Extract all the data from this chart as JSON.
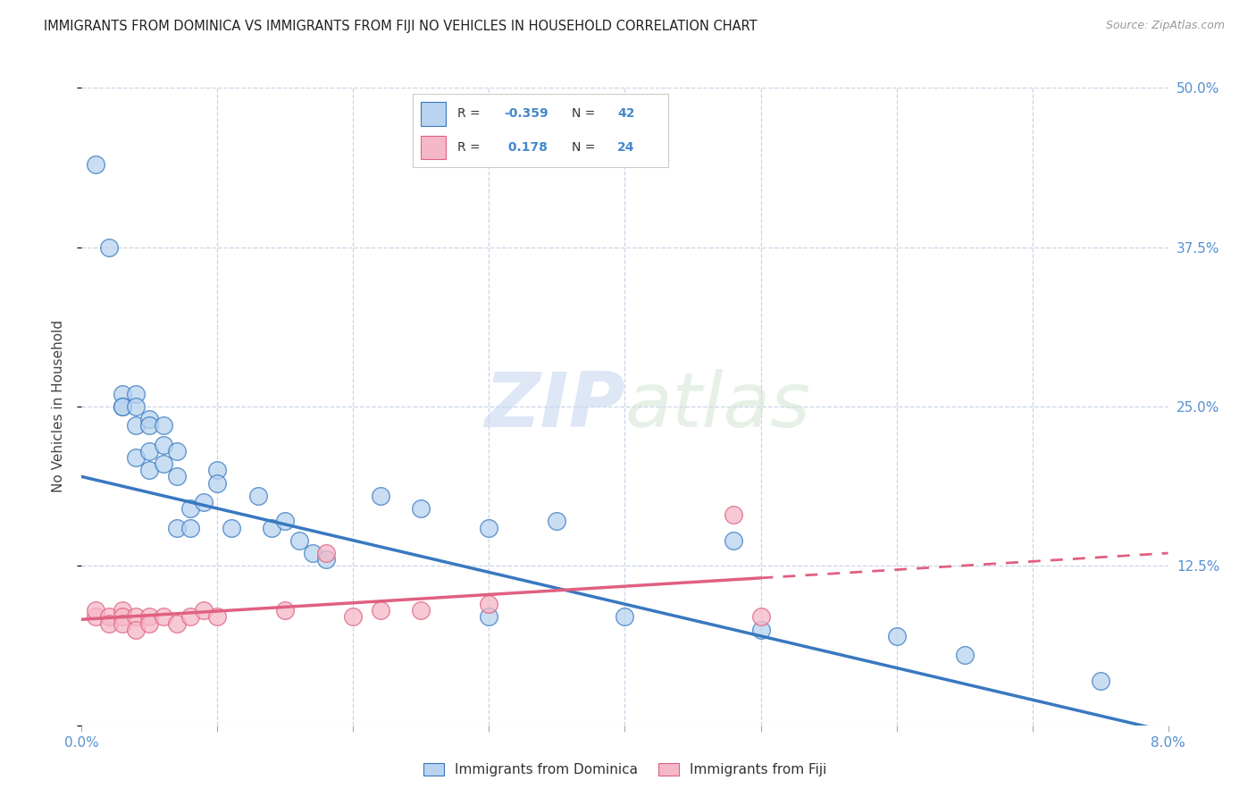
{
  "title": "IMMIGRANTS FROM DOMINICA VS IMMIGRANTS FROM FIJI NO VEHICLES IN HOUSEHOLD CORRELATION CHART",
  "source": "Source: ZipAtlas.com",
  "ylabel": "No Vehicles in Household",
  "legend_label_blue": "Immigrants from Dominica",
  "legend_label_pink": "Immigrants from Fiji",
  "watermark_zip": "ZIP",
  "watermark_atlas": "atlas",
  "blue_color": "#b8d4f0",
  "pink_color": "#f5b8c8",
  "blue_line_color": "#3878c0",
  "pink_line_color": "#e06080",
  "legend_r_blue": "-0.359",
  "legend_n_blue": "42",
  "legend_r_pink": "0.178",
  "legend_n_pink": "24",
  "dominica_x": [
    0.001,
    0.002,
    0.003,
    0.003,
    0.003,
    0.004,
    0.004,
    0.004,
    0.004,
    0.005,
    0.005,
    0.005,
    0.005,
    0.006,
    0.006,
    0.006,
    0.007,
    0.007,
    0.007,
    0.008,
    0.008,
    0.009,
    0.01,
    0.01,
    0.011,
    0.013,
    0.014,
    0.015,
    0.016,
    0.017,
    0.018,
    0.022,
    0.025,
    0.03,
    0.03,
    0.035,
    0.04,
    0.048,
    0.05,
    0.06,
    0.065,
    0.075
  ],
  "dominica_y": [
    0.44,
    0.375,
    0.26,
    0.25,
    0.25,
    0.26,
    0.25,
    0.235,
    0.21,
    0.24,
    0.235,
    0.215,
    0.2,
    0.235,
    0.22,
    0.205,
    0.215,
    0.195,
    0.155,
    0.17,
    0.155,
    0.175,
    0.2,
    0.19,
    0.155,
    0.18,
    0.155,
    0.16,
    0.145,
    0.135,
    0.13,
    0.18,
    0.17,
    0.155,
    0.085,
    0.16,
    0.085,
    0.145,
    0.075,
    0.07,
    0.055,
    0.035
  ],
  "fiji_x": [
    0.001,
    0.001,
    0.002,
    0.002,
    0.003,
    0.003,
    0.003,
    0.004,
    0.004,
    0.005,
    0.005,
    0.006,
    0.007,
    0.008,
    0.009,
    0.01,
    0.015,
    0.018,
    0.02,
    0.022,
    0.025,
    0.03,
    0.048,
    0.05
  ],
  "fiji_y": [
    0.085,
    0.09,
    0.085,
    0.08,
    0.09,
    0.085,
    0.08,
    0.085,
    0.075,
    0.085,
    0.08,
    0.085,
    0.08,
    0.085,
    0.09,
    0.085,
    0.09,
    0.135,
    0.085,
    0.09,
    0.09,
    0.095,
    0.165,
    0.085
  ],
  "xlim": [
    0.0,
    0.08
  ],
  "ylim": [
    0.0,
    0.5
  ],
  "blue_line_x0": 0.0,
  "blue_line_x1": 0.08,
  "blue_line_y0": 0.195,
  "blue_line_y1": -0.005,
  "pink_line_x0": 0.0,
  "pink_line_x1": 0.08,
  "pink_line_y0": 0.083,
  "pink_line_y1": 0.135,
  "xtick_positions": [
    0.0,
    0.01,
    0.02,
    0.03,
    0.04,
    0.05,
    0.06,
    0.07,
    0.08
  ],
  "ytick_positions": [
    0.0,
    0.125,
    0.25,
    0.375,
    0.5
  ],
  "right_yticklabels": [
    "",
    "12.5%",
    "25.0%",
    "37.5%",
    "50.0%"
  ]
}
